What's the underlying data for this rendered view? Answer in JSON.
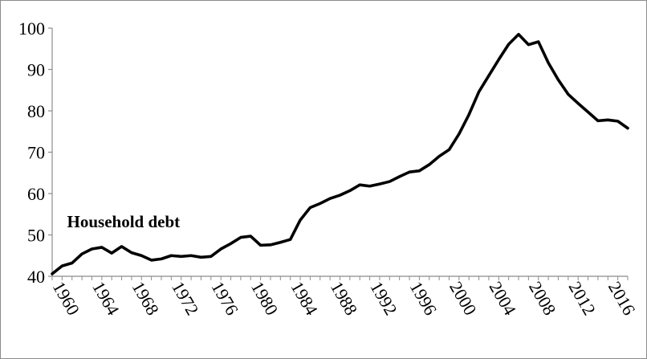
{
  "chart_data": {
    "type": "line",
    "title": "",
    "xlabel": "",
    "ylabel": "",
    "xlim": [
      1960,
      2018
    ],
    "ylim": [
      40,
      100
    ],
    "y_ticks": [
      40,
      50,
      60,
      70,
      80,
      90,
      100
    ],
    "x_ticks": [
      1960,
      1964,
      1968,
      1972,
      1976,
      1980,
      1984,
      1988,
      1992,
      1996,
      2000,
      2004,
      2008,
      2012,
      2016
    ],
    "grid": false,
    "legend": "none",
    "annotations": [
      {
        "text": "Household debt",
        "x": 1961.5,
        "y": 51.8
      }
    ],
    "series": [
      {
        "name": "Household debt",
        "color": "#000000",
        "x": [
          1960,
          1961,
          1962,
          1963,
          1964,
          1965,
          1966,
          1967,
          1968,
          1969,
          1970,
          1971,
          1972,
          1973,
          1974,
          1975,
          1976,
          1977,
          1978,
          1979,
          1980,
          1981,
          1982,
          1983,
          1984,
          1985,
          1986,
          1987,
          1988,
          1989,
          1990,
          1991,
          1992,
          1993,
          1994,
          1995,
          1996,
          1997,
          1998,
          1999,
          2000,
          2001,
          2002,
          2003,
          2004,
          2005,
          2006,
          2007,
          2008,
          2009,
          2010,
          2011,
          2012,
          2013,
          2014,
          2015,
          2016,
          2017,
          2018
        ],
        "values": [
          40.6,
          42.5,
          43.2,
          45.4,
          46.6,
          47.0,
          45.6,
          47.2,
          45.7,
          45.0,
          43.9,
          44.2,
          45.0,
          44.8,
          45.0,
          44.6,
          44.8,
          46.6,
          47.9,
          49.4,
          49.7,
          47.5,
          47.6,
          48.2,
          48.9,
          53.6,
          56.6,
          57.6,
          58.8,
          59.6,
          60.7,
          62.1,
          61.8,
          62.3,
          62.9,
          64.1,
          65.2,
          65.5,
          67.0,
          69.0,
          70.6,
          74.4,
          79.1,
          84.6,
          88.5,
          92.4,
          96.1,
          98.5,
          96.0,
          96.7,
          91.6,
          87.5,
          84.0,
          81.8,
          79.7,
          77.6,
          77.8,
          77.5,
          75.8
        ]
      }
    ]
  }
}
